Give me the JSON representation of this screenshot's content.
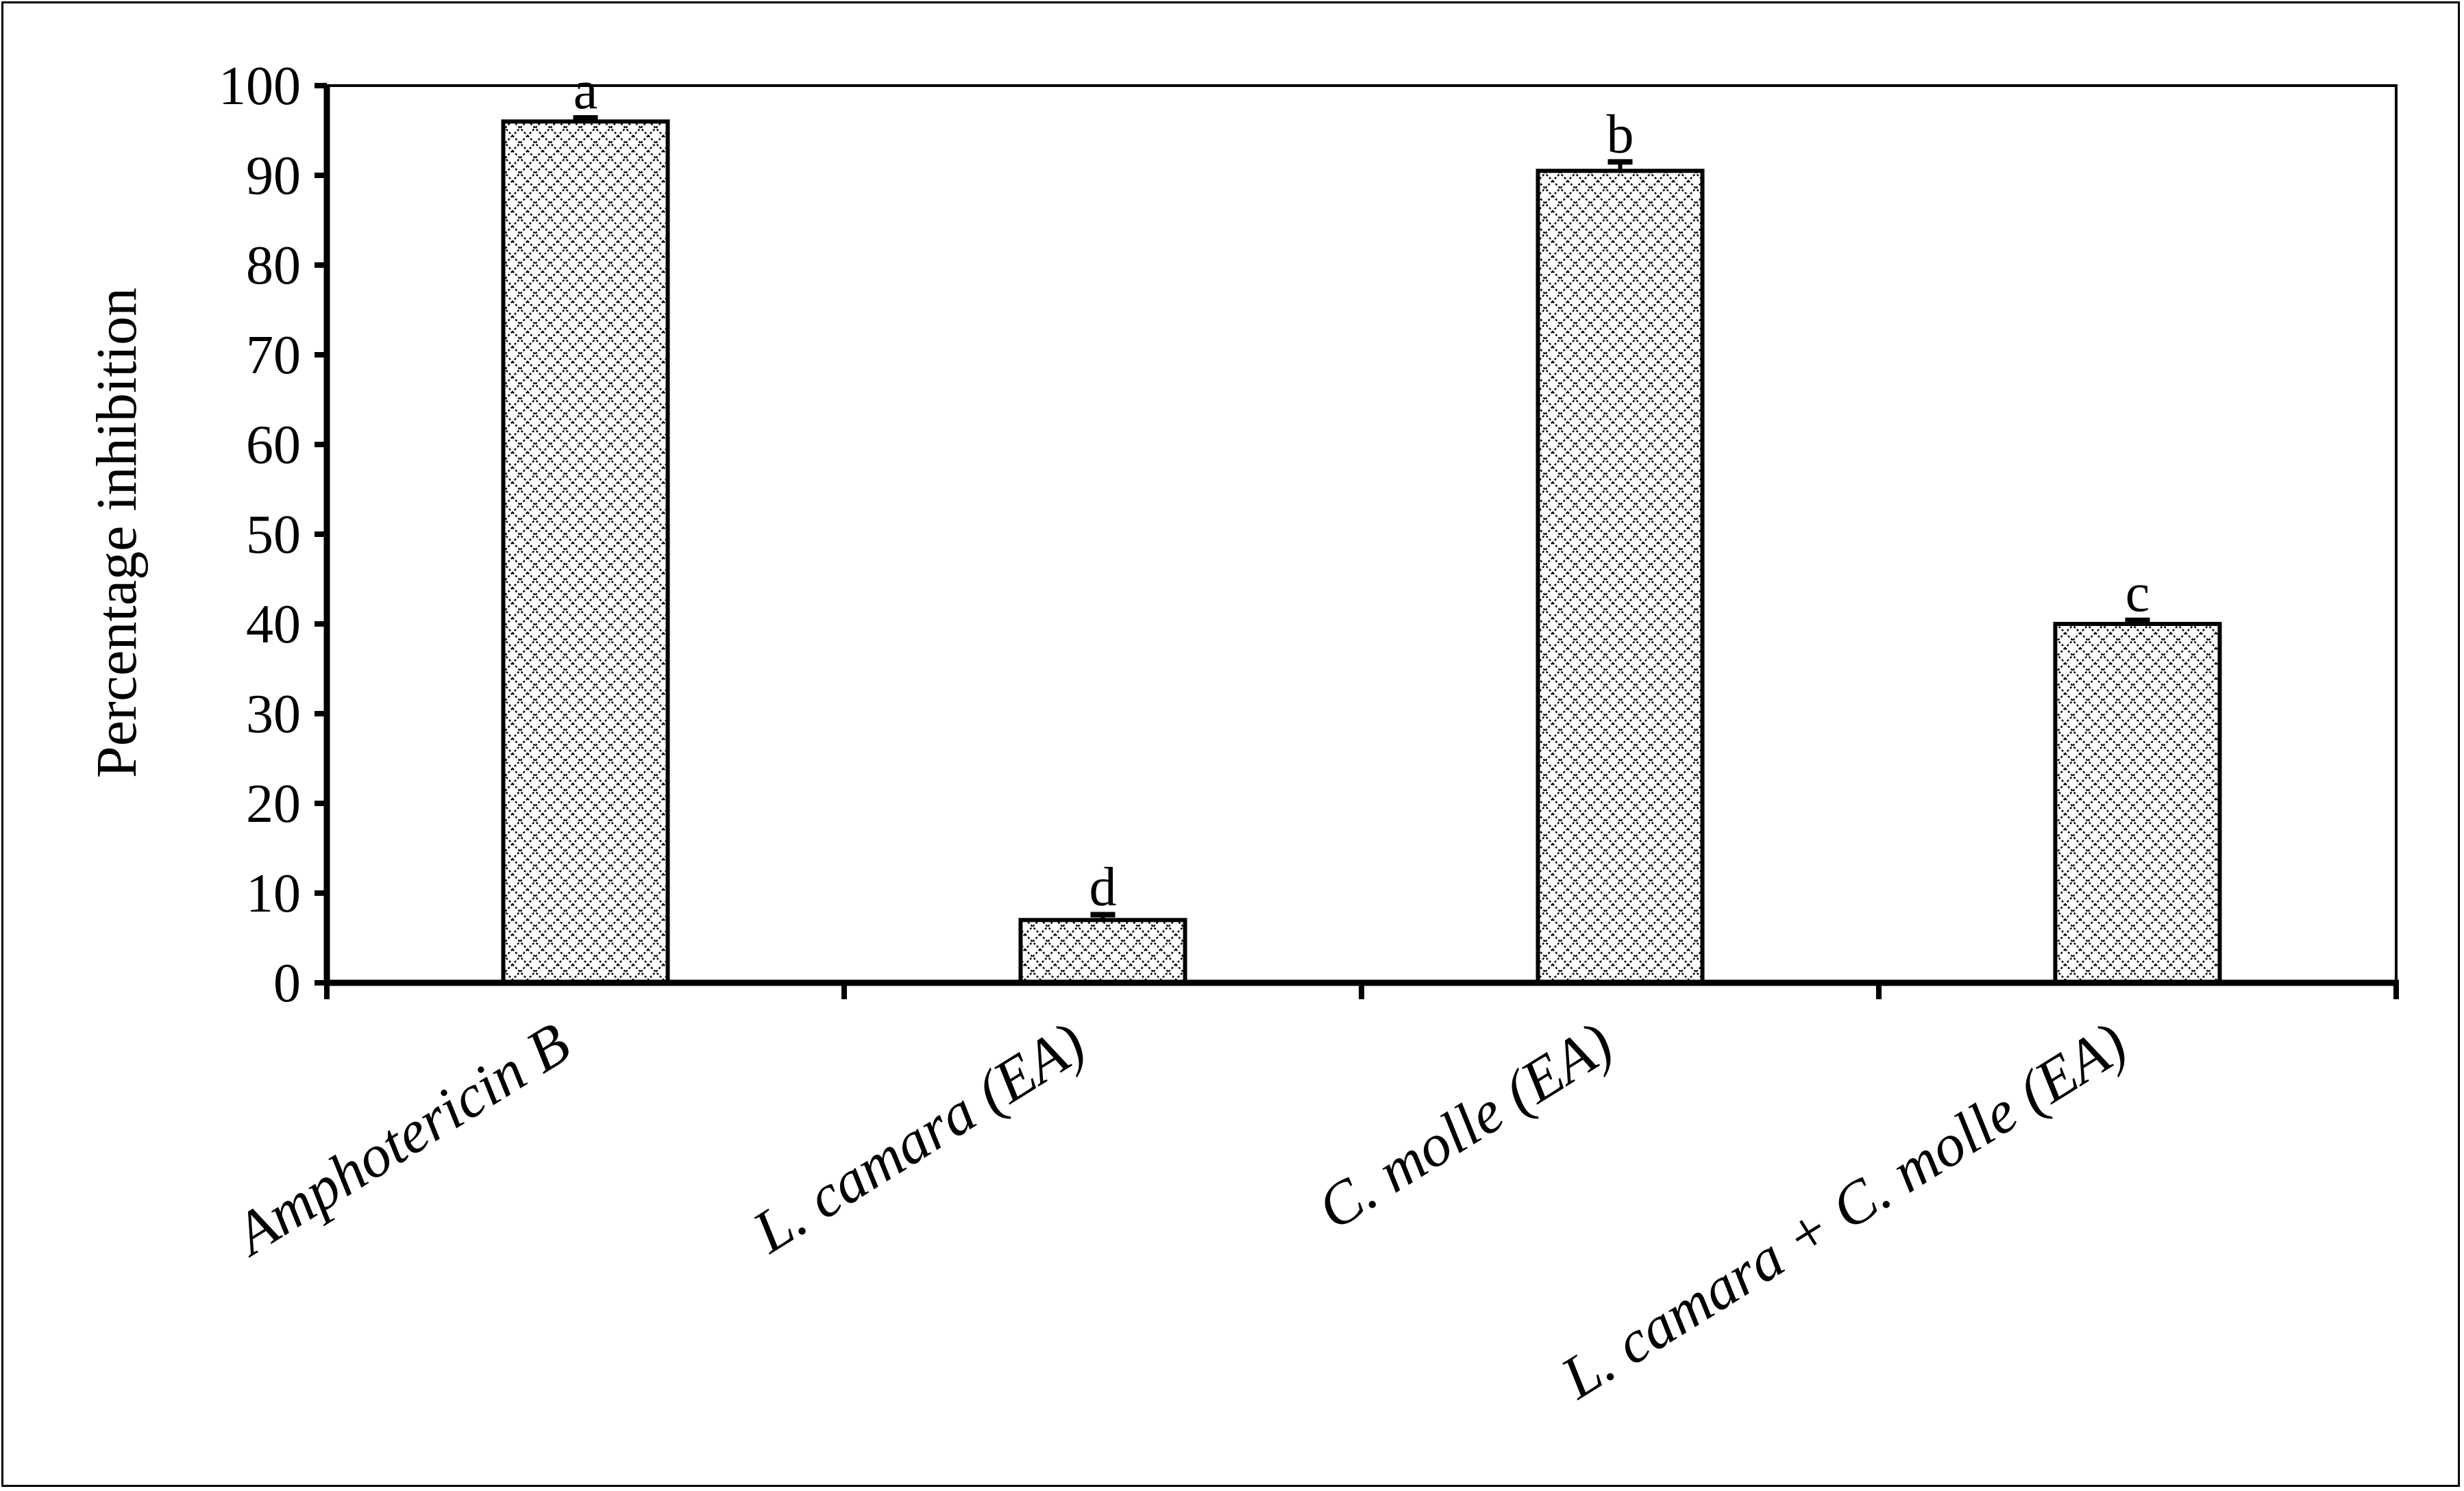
{
  "chart_data": {
    "type": "bar",
    "title": "",
    "ylabel": "Percentage inhibition",
    "xlabel": "",
    "ylim": [
      0,
      100
    ],
    "yticks": [
      0,
      10,
      20,
      30,
      40,
      50,
      60,
      70,
      80,
      90,
      100
    ],
    "grid": false,
    "legend": "none",
    "bar_fill": "crosshatch",
    "colors": {
      "bar_stroke": "#000000",
      "bar_hatch": "#000000",
      "background": "#ffffff"
    },
    "categories": [
      "Amphotericin B",
      "L. camara (EA)",
      "C. molle (EA)",
      "L. camara + C. molle (EA)"
    ],
    "values": [
      96,
      7,
      90.5,
      40
    ],
    "error": [
      0.4,
      0.6,
      1.0,
      0.4
    ],
    "significance_labels": [
      "a",
      "d",
      "b",
      "c"
    ]
  }
}
